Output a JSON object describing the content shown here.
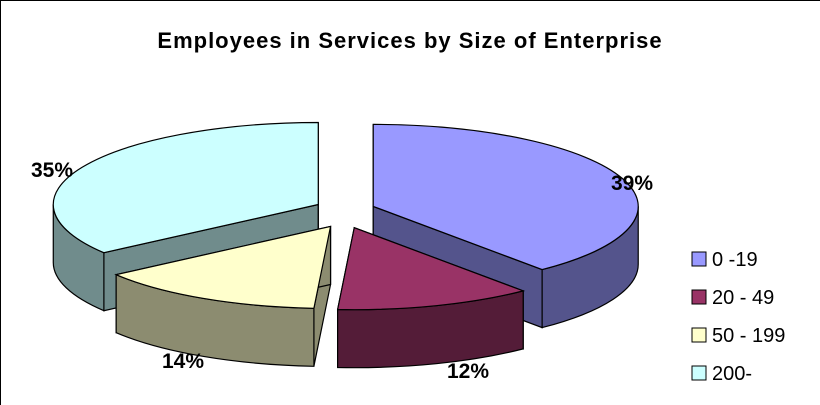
{
  "chart_data": {
    "type": "pie",
    "title": "Employees in Services by Size of Enterprise",
    "categories": [
      "0 -19",
      "20 - 49",
      "50 - 199",
      "200-"
    ],
    "values": [
      39,
      12,
      14,
      35
    ],
    "value_labels": [
      "39%",
      "12%",
      "14%",
      "35%"
    ],
    "colors": [
      "#9999ff",
      "#993366",
      "#ffffcc",
      "#ccffff"
    ],
    "legend_position": "right",
    "style": "3d-exploded"
  }
}
